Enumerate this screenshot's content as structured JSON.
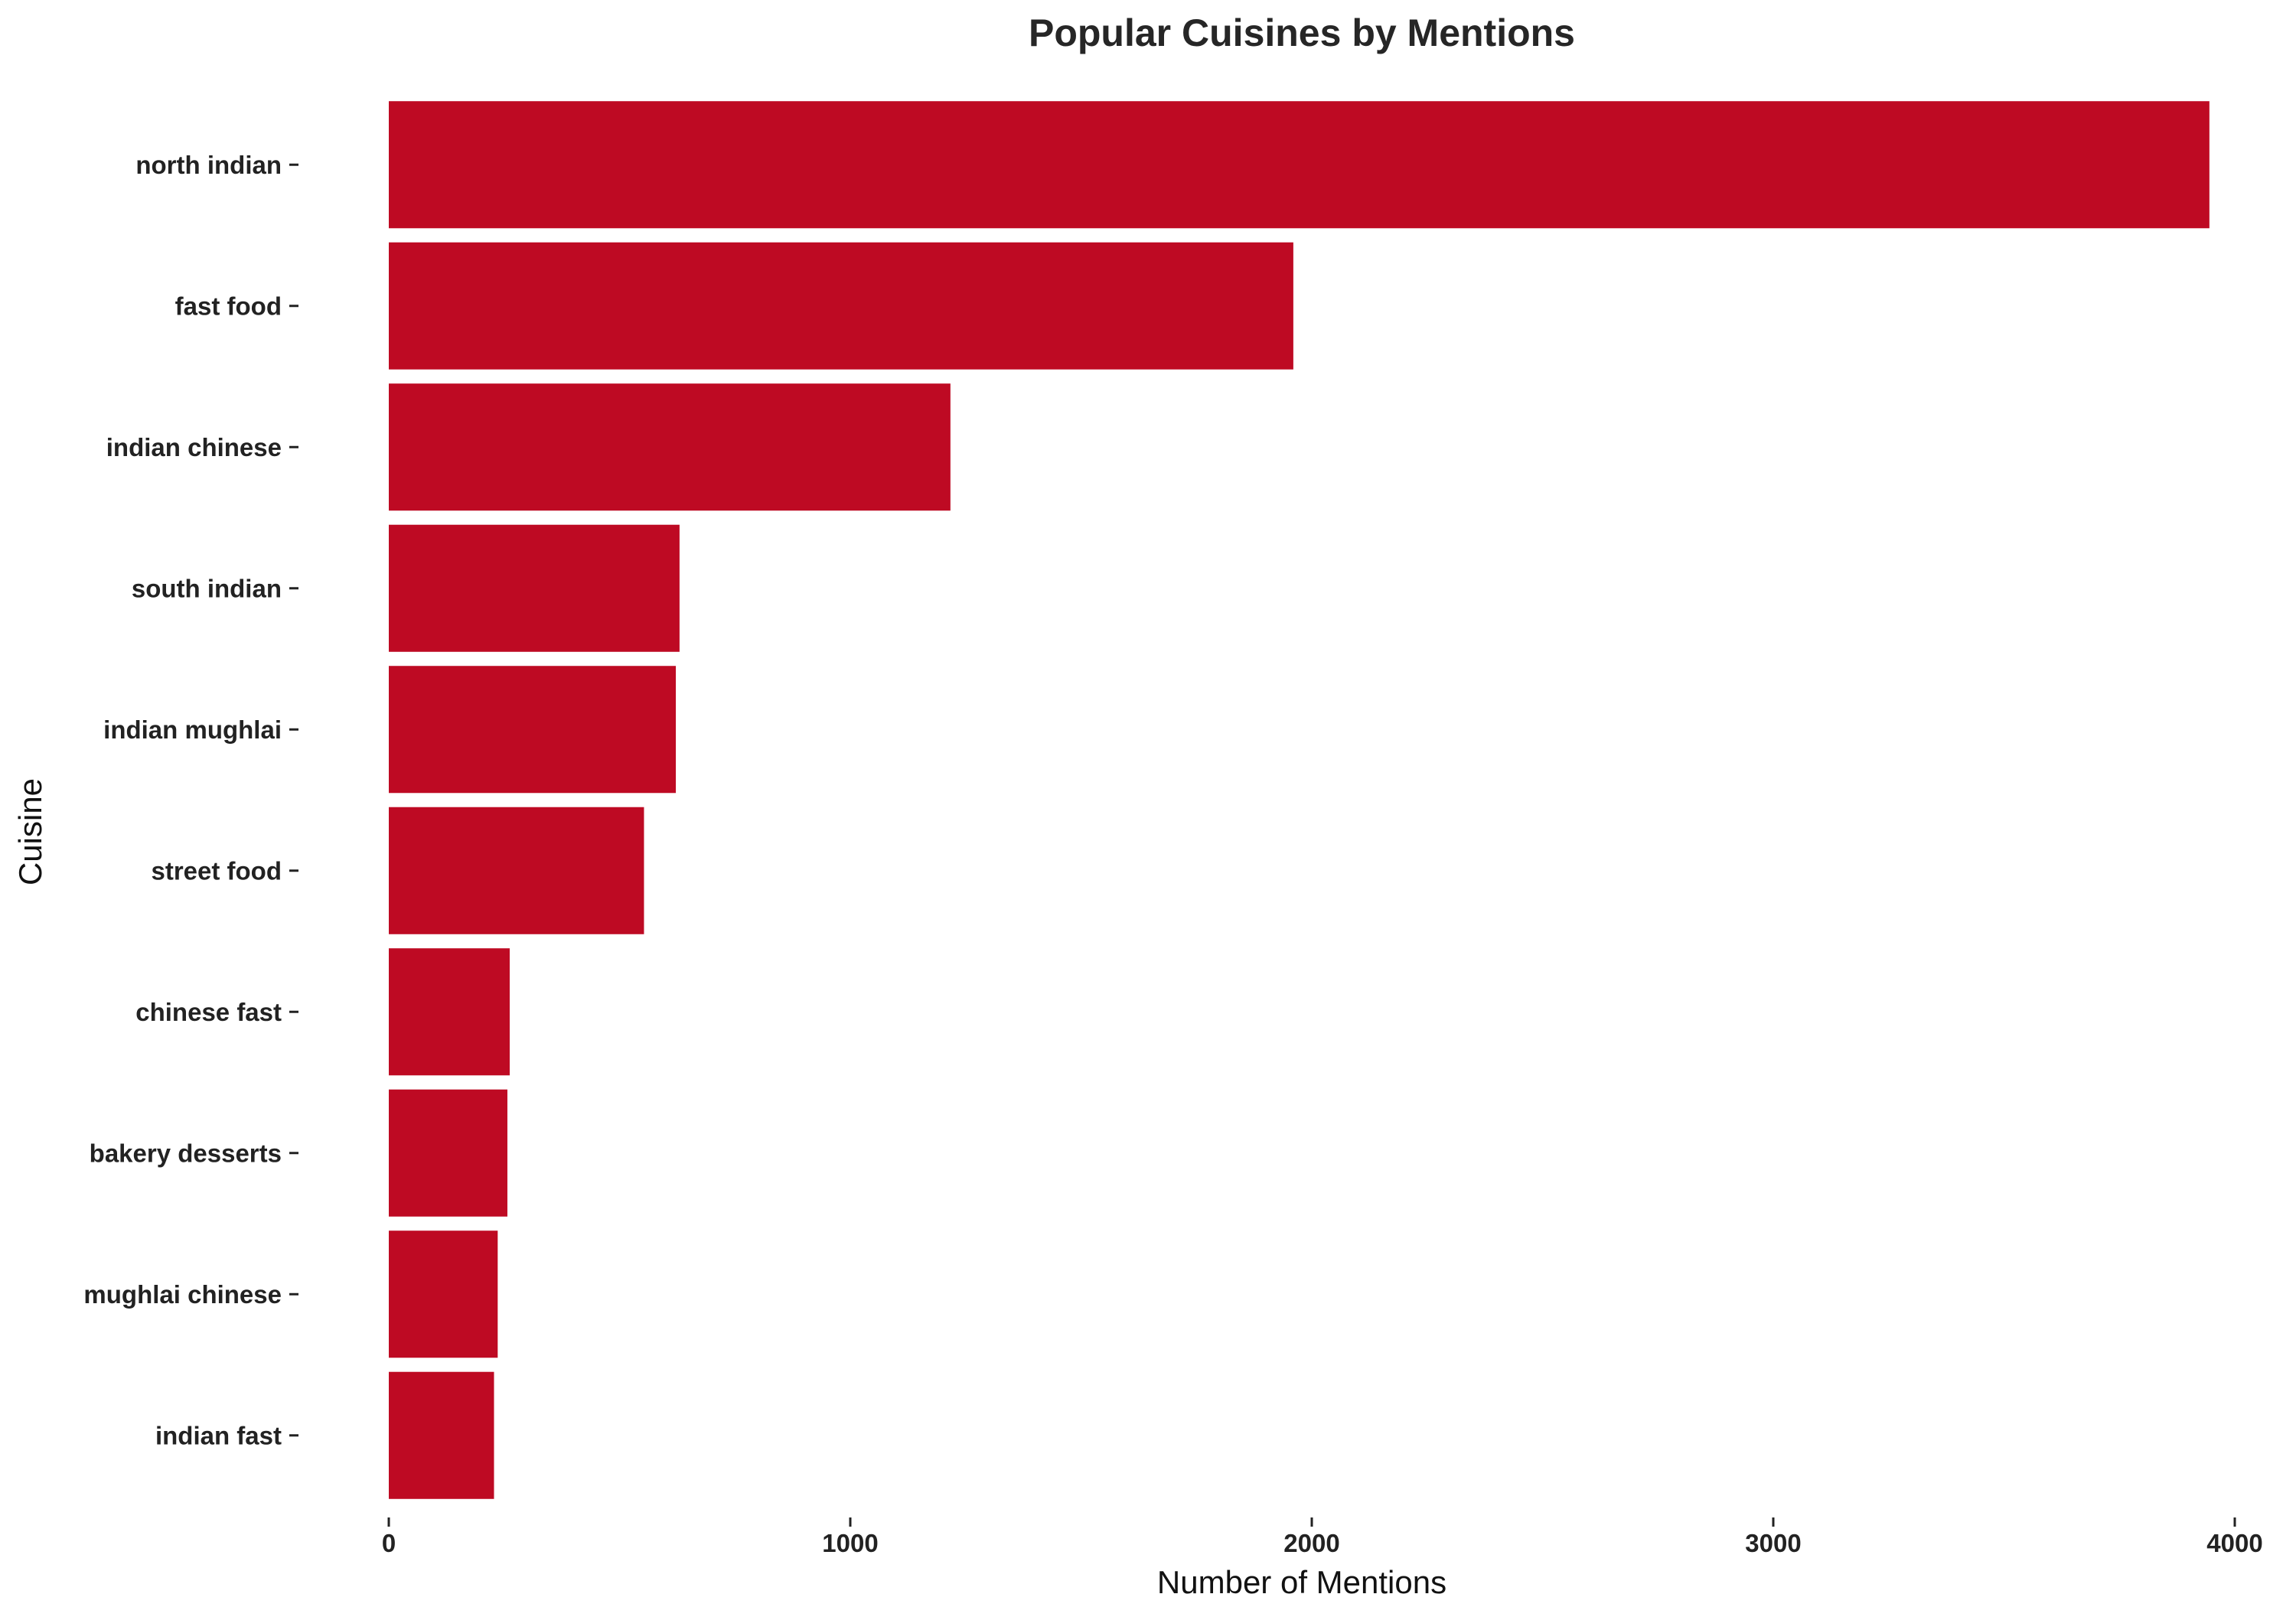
{
  "chart_data": {
    "type": "bar",
    "orientation": "horizontal",
    "title": "Popular Cuisines by Mentions",
    "xlabel": "Number of Mentions",
    "ylabel": "Cuisine",
    "categories": [
      "north indian",
      "fast food",
      "indian chinese",
      "south indian",
      "indian mughlai",
      "street food",
      "chinese fast",
      "bakery desserts",
      "mughlai chinese",
      "indian fast"
    ],
    "values": [
      3945,
      1960,
      1217,
      630,
      622,
      553,
      262,
      257,
      236,
      228
    ],
    "xlim": [
      0,
      4000
    ],
    "xticks": [
      0,
      1000,
      2000,
      3000,
      4000
    ],
    "bar_color": "#be0a23",
    "grid": false,
    "legend": "none"
  }
}
